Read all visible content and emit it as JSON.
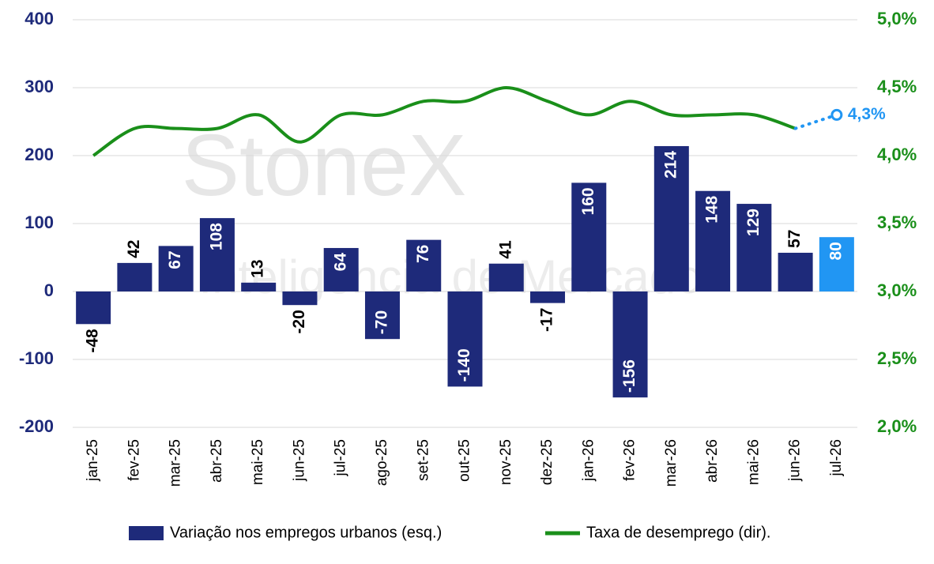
{
  "chart_data": {
    "type": "bar-line",
    "annotations": [
      "StoneX",
      "Inteligência de Mercado"
    ],
    "categories": [
      "jan-25",
      "fev-25",
      "mar-25",
      "abr-25",
      "mai-25",
      "jun-25",
      "jul-25",
      "ago-25",
      "set-25",
      "out-25",
      "nov-25",
      "dez-25",
      "jan-26",
      "fev-26",
      "mar-26",
      "abr-26",
      "mai-26",
      "jun-26",
      "jul-26"
    ],
    "series": [
      {
        "name": "Variação nos empregos urbanos (esq.)",
        "type": "bar",
        "color": "#1e2a7a",
        "point_colors": [
          null,
          null,
          null,
          null,
          null,
          null,
          null,
          null,
          null,
          null,
          null,
          null,
          null,
          null,
          null,
          null,
          null,
          null,
          "#2196f3"
        ],
        "values": [
          -48,
          42,
          67,
          108,
          13,
          -20,
          64,
          -70,
          76,
          -140,
          41,
          -17,
          160,
          -156,
          214,
          148,
          129,
          57,
          80
        ]
      },
      {
        "name": "Taxa de desemprego (dir).",
        "type": "line",
        "axis": "y2",
        "color": "#1a8f1a",
        "point_colors": [
          null,
          null,
          null,
          null,
          null,
          null,
          null,
          null,
          null,
          null,
          null,
          null,
          null,
          null,
          null,
          null,
          null,
          null,
          "#2196f3"
        ],
        "values": [
          4.0,
          4.2,
          4.2,
          4.2,
          4.3,
          4.1,
          4.3,
          4.3,
          4.4,
          4.4,
          4.5,
          4.4,
          4.3,
          4.4,
          4.3,
          4.3,
          4.3,
          4.2,
          4.3
        ],
        "value_labels": [
          null,
          null,
          null,
          null,
          null,
          null,
          null,
          null,
          null,
          null,
          null,
          null,
          null,
          null,
          null,
          null,
          null,
          null,
          "4,3%"
        ]
      }
    ],
    "ylim": [
      -200,
      400
    ],
    "yticks": [
      -200,
      -100,
      0,
      100,
      200,
      300,
      400
    ],
    "y2lim": [
      2.0,
      5.0
    ],
    "y2ticks": [
      {
        "value": 2.0,
        "label": "2,0%"
      },
      {
        "value": 2.5,
        "label": "2,5%"
      },
      {
        "value": 3.0,
        "label": "3,0%"
      },
      {
        "value": 3.5,
        "label": "3,5%"
      },
      {
        "value": 4.0,
        "label": "4,0%"
      },
      {
        "value": 4.5,
        "label": "4,5%"
      },
      {
        "value": 5.0,
        "label": "5,0%"
      }
    ],
    "grid": true,
    "legend": "bottom"
  }
}
